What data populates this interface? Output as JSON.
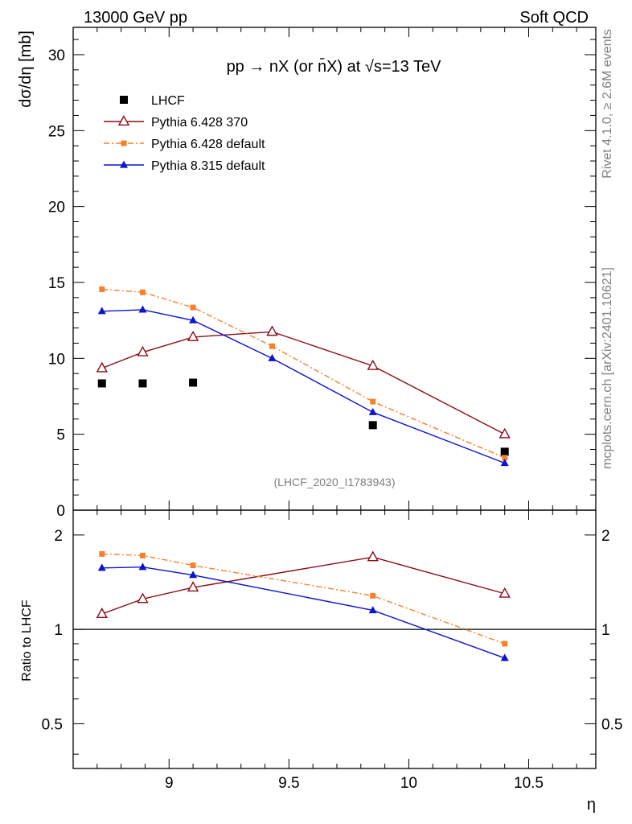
{
  "header": {
    "left": "13000 GeV pp",
    "right": "Soft QCD"
  },
  "side_labels": {
    "rivet": "Rivet 4.1.0, ≥ 2.6M events",
    "mcplots": "mcplots.cern.ch [arXiv:2401.10621]"
  },
  "colors": {
    "data": "#000000",
    "py6_370": "#8b0d18",
    "py6_default": "#f5812e",
    "py8_default": "#0a14d0"
  },
  "chart_data": {
    "type": "line",
    "title": "pp → nX (or n̄X) at √s=13 TeV",
    "analysis_label": "(LHCF_2020_I1783943)",
    "xlabel": "η",
    "xlim": [
      8.6,
      10.78
    ],
    "x_ticks": [
      "9",
      "9.5",
      "10",
      "10.5"
    ],
    "upper": {
      "ylabel": "dσ/dη [mb]",
      "ylim": [
        0,
        31.8
      ],
      "y_ticks": [
        "0",
        "5",
        "10",
        "15",
        "20",
        "25",
        "30"
      ],
      "legend": [
        "LHCF",
        "Pythia 6.428 370",
        "Pythia 6.428 default",
        "Pythia 8.315 default"
      ],
      "legend_position": "top-left",
      "series": [
        {
          "name": "LHCF",
          "x": [
            8.72,
            8.89,
            9.1,
            9.85,
            10.4
          ],
          "values": [
            8.35,
            8.35,
            8.4,
            5.6,
            3.85
          ]
        },
        {
          "name": "Pythia 6.428 370",
          "x": [
            8.72,
            8.89,
            9.1,
            9.43,
            9.85,
            10.4
          ],
          "values": [
            9.35,
            10.4,
            11.4,
            11.75,
            9.5,
            5.0
          ]
        },
        {
          "name": "Pythia 6.428 default",
          "x": [
            8.72,
            8.89,
            9.1,
            9.43,
            9.85,
            10.4
          ],
          "values": [
            14.55,
            14.35,
            13.35,
            10.8,
            7.15,
            3.45
          ]
        },
        {
          "name": "Pythia 8.315 default",
          "x": [
            8.72,
            8.89,
            9.1,
            9.43,
            9.85,
            10.4
          ],
          "values": [
            13.1,
            13.2,
            12.5,
            10.0,
            6.45,
            3.1
          ]
        }
      ]
    },
    "lower": {
      "ylabel": "Ratio to LHCF",
      "scale": "log",
      "ylim": [
        0.36,
        2.4
      ],
      "y_ticks": [
        "0.5",
        "1",
        "2"
      ],
      "reference_line": 1,
      "series": [
        {
          "name": "Pythia 6.428 370",
          "x": [
            8.72,
            8.89,
            9.1,
            9.85,
            10.4
          ],
          "values": [
            1.12,
            1.25,
            1.36,
            1.7,
            1.3
          ]
        },
        {
          "name": "Pythia 6.428 default",
          "x": [
            8.72,
            8.89,
            9.1,
            9.85,
            10.4
          ],
          "values": [
            1.74,
            1.72,
            1.6,
            1.28,
            0.9
          ]
        },
        {
          "name": "Pythia 8.315 default",
          "x": [
            8.72,
            8.89,
            9.1,
            9.85,
            10.4
          ],
          "values": [
            1.57,
            1.58,
            1.49,
            1.15,
            0.81
          ]
        }
      ]
    }
  }
}
